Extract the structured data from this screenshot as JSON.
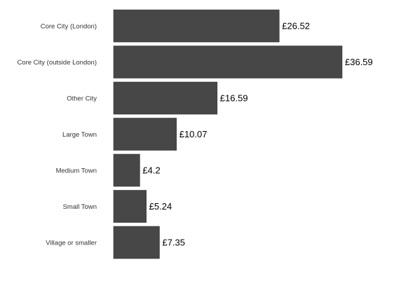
{
  "chart_data": {
    "type": "bar",
    "orientation": "horizontal",
    "title": "",
    "xlabel": "",
    "ylabel": "",
    "categories": [
      "Core City (London)",
      "Core City (outside London)",
      "Other City",
      "Large Town",
      "Medium Town",
      "Small Town",
      "Village or smaller"
    ],
    "values": [
      26.52,
      36.59,
      16.59,
      10.07,
      4.2,
      5.24,
      7.35
    ],
    "value_labels": [
      "£26.52",
      "£36.59",
      "£16.59",
      "£10.07",
      "£4.2",
      "£5.24",
      "£7.35"
    ],
    "xlim": [
      0,
      36.59
    ],
    "grid": false,
    "legend": "none",
    "colors": {
      "bar": "#474747",
      "bar_stroke": "#3a3a3a",
      "category_text": "#333333",
      "value_text": "#000000",
      "background": "#ffffff"
    }
  }
}
